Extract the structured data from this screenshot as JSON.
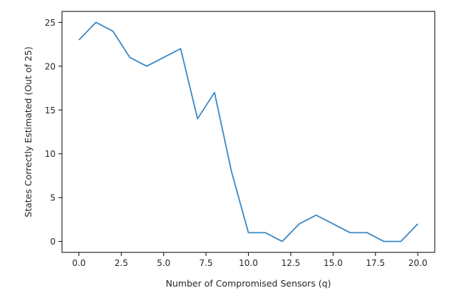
{
  "chart_data": {
    "type": "line",
    "title": "",
    "xlabel": "Number of Compromised Sensors (q)",
    "ylabel": "States Correctly Estimated (Out of 25)",
    "xlim": [
      -1,
      21
    ],
    "ylim": [
      -1.25,
      26.25
    ],
    "xticks": [
      0.0,
      2.5,
      5.0,
      7.5,
      10.0,
      12.5,
      15.0,
      17.5,
      20.0
    ],
    "xtick_labels": [
      "0.0",
      "2.5",
      "5.0",
      "7.5",
      "10.0",
      "12.5",
      "15.0",
      "17.5",
      "20.0"
    ],
    "yticks": [
      0,
      5,
      10,
      15,
      20,
      25
    ],
    "ytick_labels": [
      "0",
      "5",
      "10",
      "15",
      "20",
      "25"
    ],
    "grid": false,
    "legend": "none",
    "line_color": "#3a87c4",
    "series": [
      {
        "x": [
          0,
          1,
          2,
          3,
          4,
          5,
          6,
          7,
          8,
          9,
          10,
          11,
          12,
          13,
          14,
          15,
          16,
          17,
          18,
          19,
          20
        ],
        "values": [
          23,
          25,
          24,
          21,
          20,
          21,
          22,
          14,
          17,
          8,
          1,
          1,
          0,
          2,
          3,
          2,
          1,
          1,
          0,
          0,
          2
        ]
      }
    ]
  }
}
